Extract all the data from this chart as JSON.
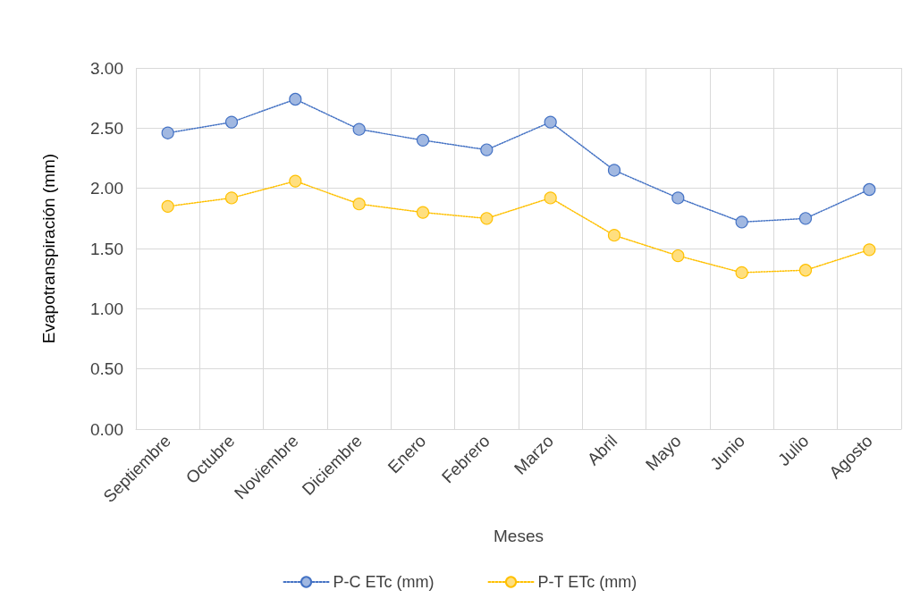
{
  "chart_data": {
    "type": "line",
    "xlabel": "Meses",
    "ylabel": "Evapotranspiración (mm)",
    "categories": [
      "Septiembre",
      "Octubre",
      "Noviembre",
      "Diciembre",
      "Enero",
      "Febrero",
      "Marzo",
      "Abril",
      "Mayo",
      "Junio",
      "Julio",
      "Agosto"
    ],
    "series": [
      {
        "name": "P-C ETc (mm)",
        "color": "#4472c4",
        "values": [
          2.46,
          2.55,
          2.74,
          2.49,
          2.4,
          2.32,
          2.55,
          2.15,
          1.92,
          1.72,
          1.75,
          1.99
        ]
      },
      {
        "name": "P-T ETc (mm)",
        "color": "#ffc000",
        "values": [
          1.85,
          1.92,
          2.06,
          1.87,
          1.8,
          1.75,
          1.92,
          1.61,
          1.44,
          1.3,
          1.32,
          1.49
        ]
      }
    ],
    "ylim": [
      0,
      3
    ],
    "yticks": [
      {
        "value": 0,
        "label": "0.00"
      },
      {
        "value": 0.5,
        "label": "0.50"
      },
      {
        "value": 1,
        "label": "1.00"
      },
      {
        "value": 1.5,
        "label": "1.50"
      },
      {
        "value": 2,
        "label": "2.00"
      },
      {
        "value": 2.5,
        "label": "2.50"
      },
      {
        "value": 3,
        "label": "3.00"
      }
    ],
    "grid": true,
    "legend": "bottom",
    "marker": "circle",
    "line_style": "dotted"
  }
}
